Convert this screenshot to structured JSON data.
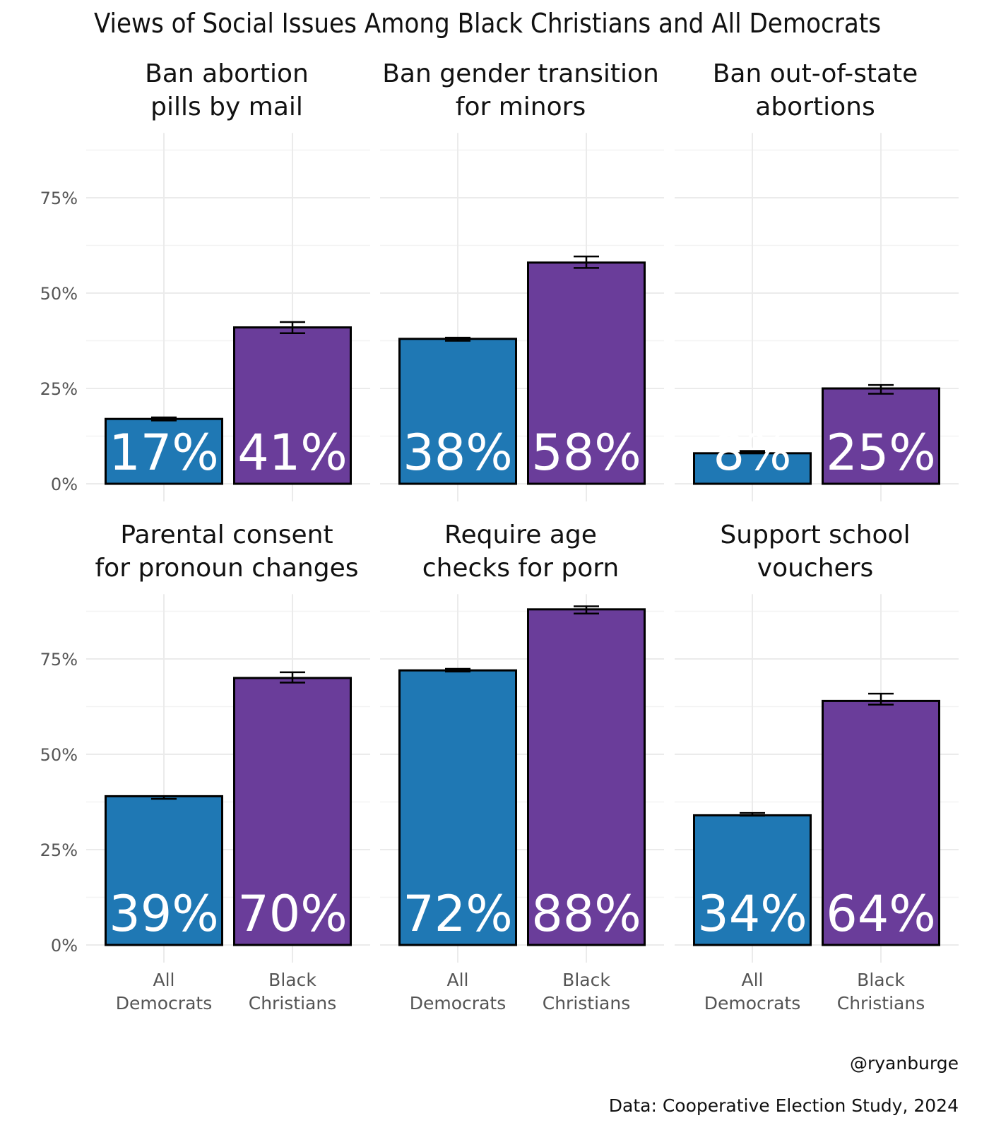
{
  "chart_data": {
    "type": "bar",
    "title": "Views of Social Issues Among Black Christians and All Democrats",
    "xlabel": "",
    "ylabel": "",
    "ylim": [
      0,
      92
    ],
    "yticks": [
      0,
      25,
      50,
      75
    ],
    "ytick_labels": [
      "0%",
      "25%",
      "50%",
      "75%"
    ],
    "grid": true,
    "legend": "none",
    "categories": [
      "All\nDemocrats",
      "Black\nChristians"
    ],
    "category_lines": [
      [
        "All",
        "Democrats"
      ],
      [
        "Black",
        "Christians"
      ]
    ],
    "colors": {
      "All Democrats": "#1f78b4",
      "Black Christians": "#6a3d9a"
    },
    "facets": [
      {
        "title_lines": [
          "Ban abortion",
          "pills by mail"
        ],
        "series": [
          {
            "name": "All Democrats",
            "value": 17,
            "label": "17%",
            "ci": [
              16.6,
              17.4
            ]
          },
          {
            "name": "Black Christians",
            "value": 41,
            "label": "41%",
            "ci": [
              39.5,
              42.4
            ]
          }
        ]
      },
      {
        "title_lines": [
          "Ban gender transition",
          "for minors"
        ],
        "series": [
          {
            "name": "All Democrats",
            "value": 38,
            "label": "38%",
            "ci": [
              37.5,
              38.3
            ]
          },
          {
            "name": "Black Christians",
            "value": 58,
            "label": "58%",
            "ci": [
              56.6,
              59.6
            ]
          }
        ]
      },
      {
        "title_lines": [
          "Ban out-of-state",
          "abortions"
        ],
        "series": [
          {
            "name": "All Democrats",
            "value": 8,
            "label": "8%",
            "ci": [
              8.2,
              8.6
            ]
          },
          {
            "name": "Black Christians",
            "value": 25,
            "label": "25%",
            "ci": [
              23.6,
              25.9
            ]
          }
        ]
      },
      {
        "title_lines": [
          "Parental consent",
          "for pronoun changes"
        ],
        "series": [
          {
            "name": "All Democrats",
            "value": 39,
            "label": "39%",
            "ci": [
              38.3,
              39.0
            ]
          },
          {
            "name": "Black Christians",
            "value": 70,
            "label": "70%",
            "ci": [
              68.8,
              71.5
            ]
          }
        ]
      },
      {
        "title_lines": [
          "Require age",
          "checks for porn"
        ],
        "series": [
          {
            "name": "All Democrats",
            "value": 72,
            "label": "72%",
            "ci": [
              71.7,
              72.4
            ]
          },
          {
            "name": "Black Christians",
            "value": 88,
            "label": "88%",
            "ci": [
              86.9,
              88.8
            ]
          }
        ]
      },
      {
        "title_lines": [
          "Support school",
          "vouchers"
        ],
        "series": [
          {
            "name": "All Democrats",
            "value": 34,
            "label": "34%",
            "ci": [
              33.9,
              34.6
            ]
          },
          {
            "name": "Black Christians",
            "value": 64,
            "label": "64%",
            "ci": [
              63.0,
              65.9
            ]
          }
        ]
      }
    ]
  },
  "caption": {
    "credit": "@ryanburge",
    "source": "Data: Cooperative Election Study, 2024"
  }
}
